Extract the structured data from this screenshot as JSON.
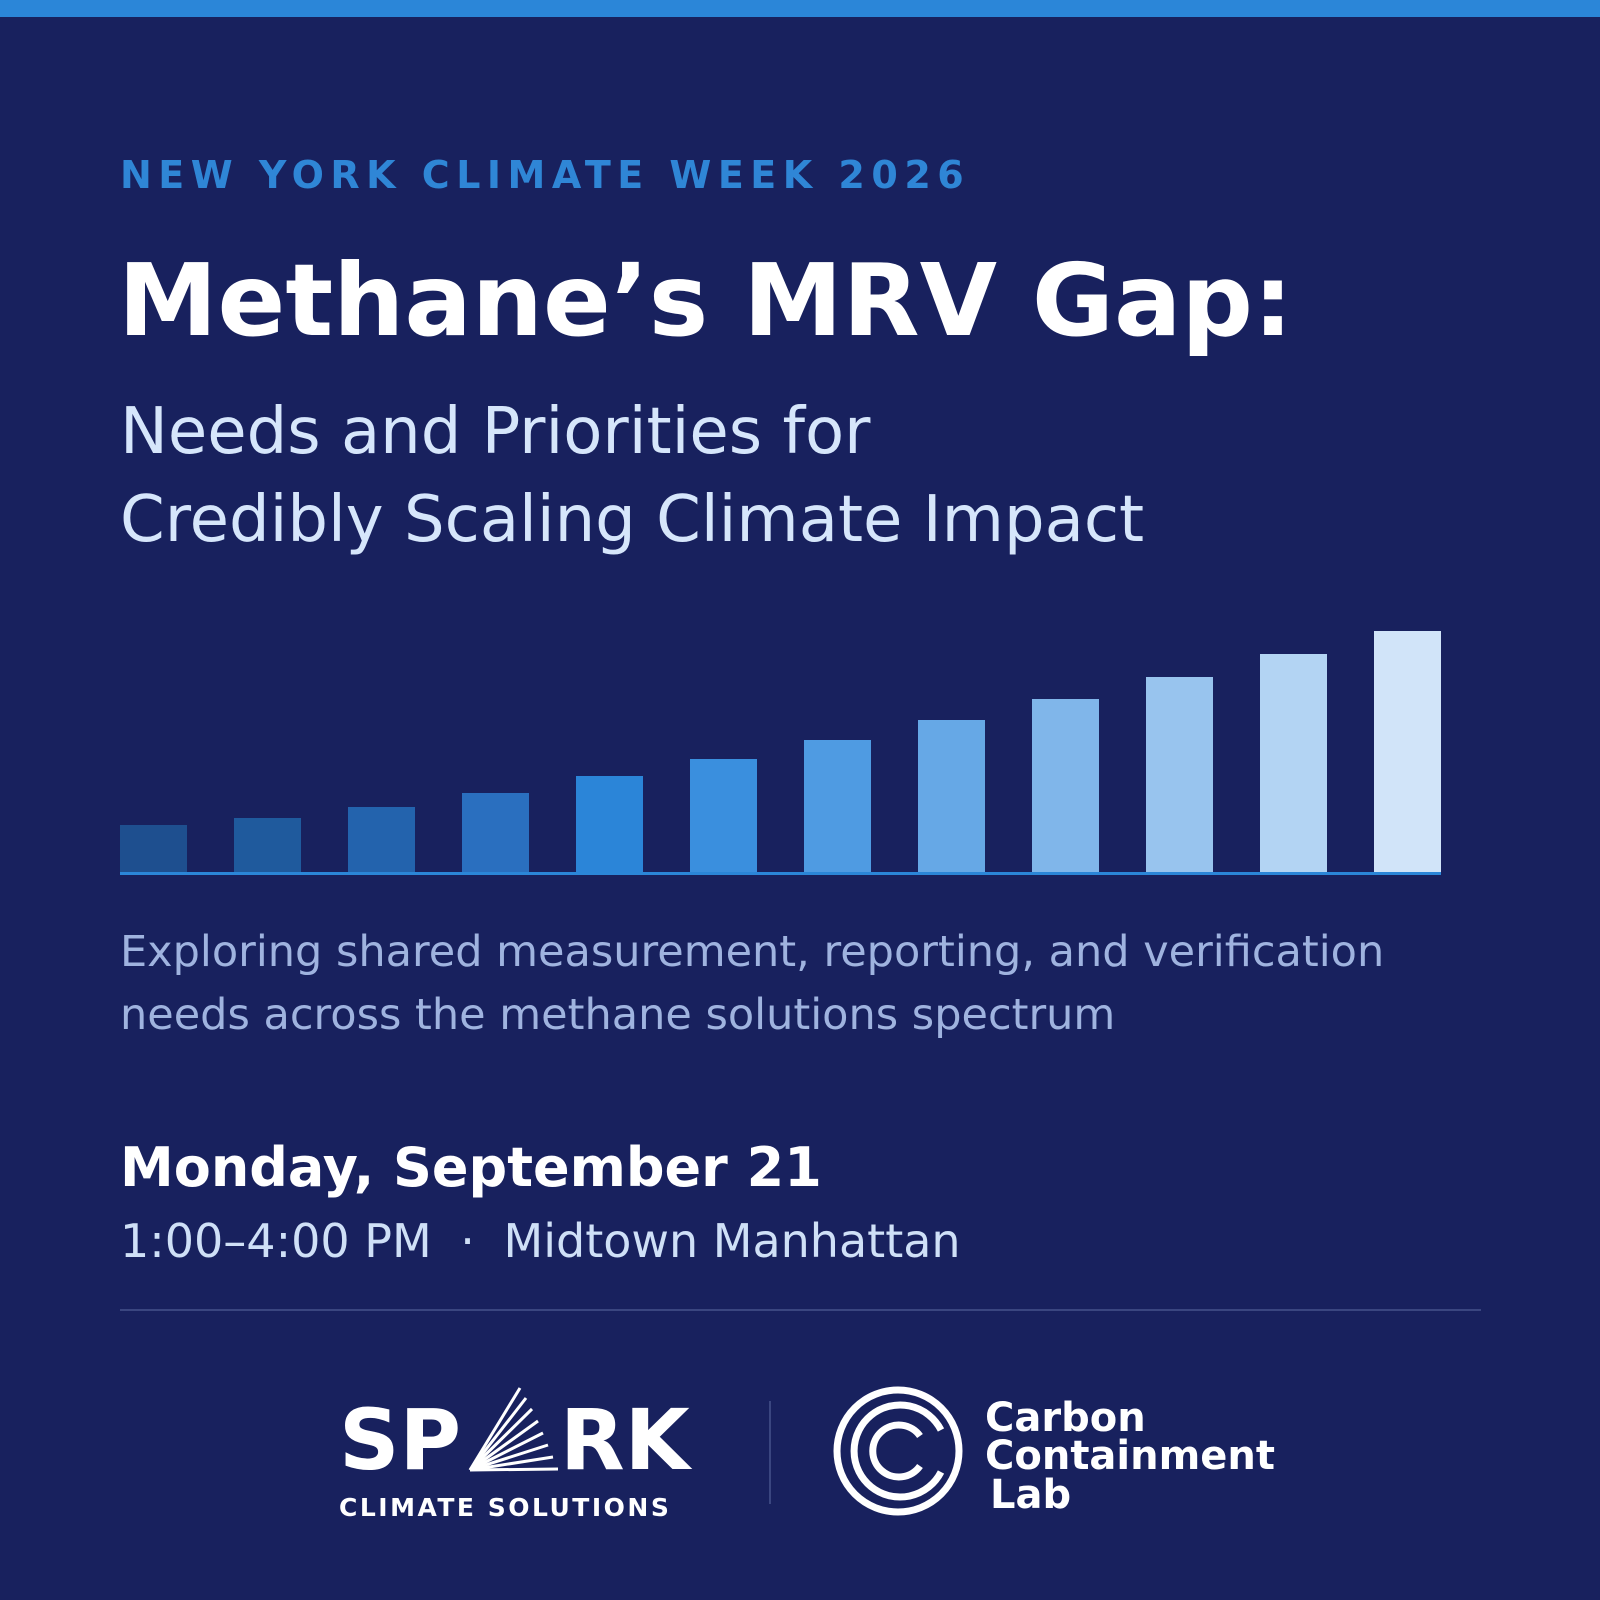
{
  "header": {
    "eyebrow": "NEW YORK CLIMATE WEEK 2026",
    "title": "Methane’s MRV Gap:",
    "subtitle_lines": [
      "Needs and Priorities for",
      "Credibly Scaling Climate Impact"
    ]
  },
  "description_lines": [
    "Exploring shared measurement, reporting, and verification",
    "needs across the methane solutions spectrum"
  ],
  "event": {
    "date": "Monday, September 21",
    "time": "1:00–4:00 PM",
    "separator": "·",
    "location": "Midtown Manhattan"
  },
  "logos": {
    "spark": {
      "wordmark_left": "SP",
      "wordmark_right": "RK",
      "tagline": "CLIMATE SOLUTIONS"
    },
    "carbon_lab": {
      "lines": [
        "Carbon",
        "Containment",
        "Lab"
      ]
    }
  }
}
